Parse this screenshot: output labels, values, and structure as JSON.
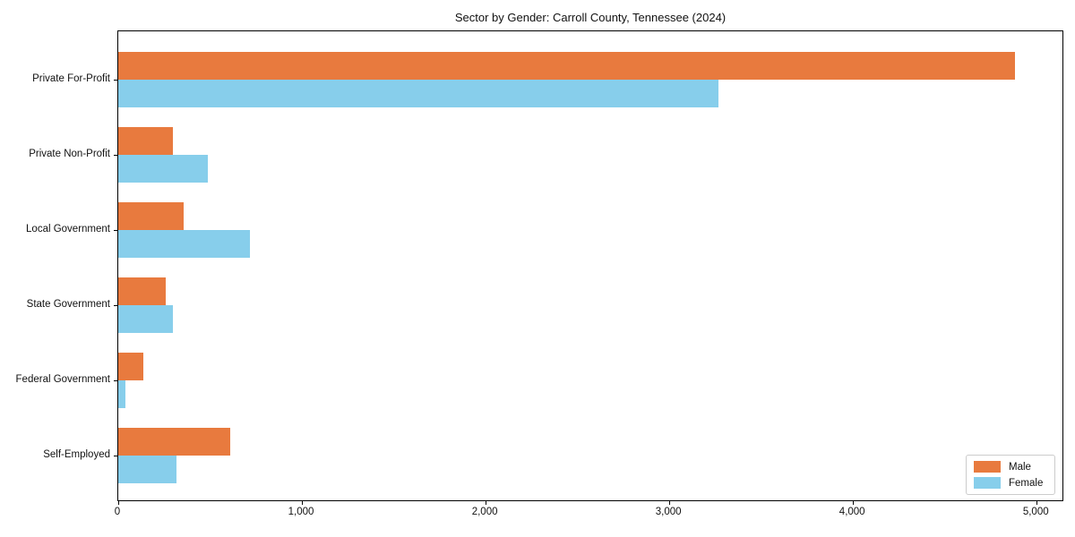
{
  "chart_data": {
    "type": "bar",
    "orientation": "horizontal",
    "title": "Sector by Gender: Carroll County, Tennessee (2024)",
    "categories": [
      "Private For-Profit",
      "Private Non-Profit",
      "Local Government",
      "State Government",
      "Federal Government",
      "Self-Employed"
    ],
    "series": [
      {
        "name": "Male",
        "color": "#E87A3E",
        "values": [
          4890,
          300,
          355,
          260,
          135,
          610
        ]
      },
      {
        "name": "Female",
        "color": "#87CEEB",
        "values": [
          3275,
          490,
          720,
          300,
          40,
          320
        ]
      }
    ],
    "xlabel": "",
    "ylabel": "",
    "xlim": [
      0,
      5150
    ],
    "xticks": [
      0,
      1000,
      2000,
      3000,
      4000,
      5000
    ],
    "xtick_labels": [
      "0",
      "1,000",
      "2,000",
      "3,000",
      "4,000",
      "5,000"
    ],
    "grid": false,
    "legend_position": "lower right",
    "colors": {
      "spine": "#000000",
      "background": "#ffffff",
      "legend_border": "#cccccc",
      "text": "#111111"
    }
  }
}
